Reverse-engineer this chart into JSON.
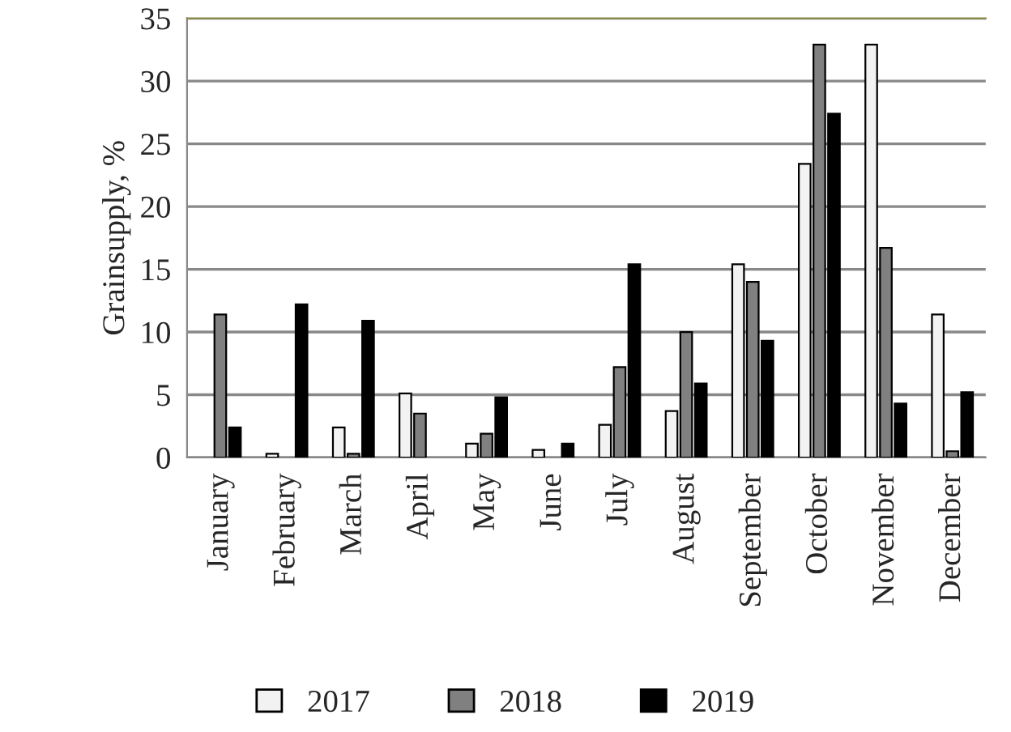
{
  "chart_data": {
    "type": "bar",
    "ylabel": "Grainsupply, %",
    "categories": [
      "January",
      "February",
      "March",
      "April",
      "May",
      "June",
      "July",
      "August",
      "September",
      "October",
      "November",
      "December"
    ],
    "series": [
      {
        "name": "2017",
        "color": "#f2f2f2",
        "values": [
          null,
          0.3,
          2.4,
          5.1,
          1.1,
          0.6,
          2.6,
          3.7,
          15.4,
          23.4,
          32.9,
          11.4
        ]
      },
      {
        "name": "2018",
        "color": "#808080",
        "values": [
          11.4,
          null,
          0.3,
          3.5,
          1.9,
          null,
          7.2,
          10.0,
          14.0,
          32.9,
          16.7,
          0.5
        ]
      },
      {
        "name": "2019",
        "color": "#000000",
        "values": [
          2.4,
          12.2,
          10.9,
          null,
          4.8,
          1.1,
          15.4,
          5.9,
          9.3,
          27.4,
          4.3,
          5.2
        ]
      }
    ],
    "ylim": [
      0,
      35
    ],
    "yticks": [
      0,
      5,
      10,
      15,
      20,
      25,
      30,
      35
    ],
    "grid": "y",
    "legend": "bottom"
  }
}
